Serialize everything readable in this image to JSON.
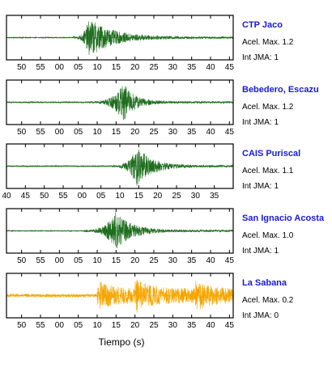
{
  "xlabel": "Tiempo (s)",
  "chart_data": [
    {
      "type": "line",
      "station": "CTP Jaco",
      "acel_label": "Acel. Max. 1.2",
      "jma_label": "Int JMA: 1",
      "color": "#1f6e1f",
      "name_color": "#1a1ad6",
      "tick_labels": [
        "50",
        "55",
        "00",
        "05",
        "10",
        "15",
        "20",
        "25",
        "30",
        "35",
        "40",
        "45"
      ],
      "x_range": [
        46,
        106
      ],
      "ticks": [
        50,
        55,
        60,
        65,
        70,
        75,
        80,
        85,
        90,
        95,
        100,
        105
      ],
      "onset": 63.5,
      "peak_time": 68,
      "peak_amp": 0.95,
      "decay": 6,
      "pre_noise": 0.02,
      "post_noise": 0.05
    },
    {
      "type": "line",
      "station": "Bebedero, Escazu",
      "acel_label": "Acel. Max. 1.2",
      "jma_label": "Int JMA: 1",
      "color": "#1f6e1f",
      "name_color": "#1a1ad6",
      "tick_labels": [
        "50",
        "55",
        "00",
        "05",
        "10",
        "15",
        "20",
        "25",
        "30",
        "35",
        "40",
        "45"
      ],
      "x_range": [
        46,
        106
      ],
      "ticks": [
        50,
        55,
        60,
        65,
        70,
        75,
        80,
        85,
        90,
        95,
        100,
        105
      ],
      "onset": 68,
      "peak_time": 77,
      "peak_amp": 0.95,
      "decay": 3,
      "pre_noise": 0.03,
      "post_noise": 0.05
    },
    {
      "type": "line",
      "station": "CAIS Puriscal",
      "acel_label": "Acel. Max. 1.1",
      "jma_label": "Int JMA: 1",
      "color": "#1f6e1f",
      "name_color": "#1a1ad6",
      "tick_labels": [
        "40",
        "45",
        "50",
        "55",
        "00",
        "05",
        "10",
        "15",
        "20",
        "25",
        "30",
        "35"
      ],
      "x_range": [
        40,
        100
      ],
      "ticks": [
        40,
        45,
        50,
        55,
        60,
        65,
        70,
        75,
        80,
        85,
        90,
        95
      ],
      "onset": 68,
      "peak_time": 74.5,
      "peak_amp": 0.95,
      "decay": 4,
      "pre_noise": 0.03,
      "post_noise": 0.05
    },
    {
      "type": "line",
      "station": "San Ignacio Acosta",
      "acel_label": "Acel. Max. 1.0",
      "jma_label": "Int JMA: 1",
      "color": "#1f6e1f",
      "name_color": "#1a1ad6",
      "tick_labels": [
        "50",
        "55",
        "00",
        "05",
        "10",
        "15",
        "20",
        "25",
        "30",
        "35",
        "40",
        "45"
      ],
      "x_range": [
        46,
        106
      ],
      "ticks": [
        50,
        55,
        60,
        65,
        70,
        75,
        80,
        85,
        90,
        95,
        100,
        105
      ],
      "onset": 66.5,
      "peak_time": 75,
      "peak_amp": 0.95,
      "decay": 4,
      "pre_noise": 0.02,
      "post_noise": 0.05
    },
    {
      "type": "line",
      "station": "La Sabana",
      "acel_label": "Acel. Max. 0.2",
      "jma_label": "Int JMA: 0",
      "color": "#f5a600",
      "name_color": "#1a1ad6",
      "tick_labels": [
        "50",
        "55",
        "00",
        "05",
        "10",
        "15",
        "20",
        "25",
        "30",
        "35",
        "40",
        "45"
      ],
      "x_range": [
        46,
        106
      ],
      "ticks": [
        50,
        55,
        60,
        65,
        70,
        75,
        80,
        85,
        90,
        95,
        100,
        105
      ],
      "onset": 70,
      "peak_time": 80,
      "peak_amp": 0.9,
      "decay": 30,
      "pre_noise": 0.08,
      "post_noise": 0.35,
      "bursts": [
        70,
        80,
        96
      ]
    }
  ]
}
